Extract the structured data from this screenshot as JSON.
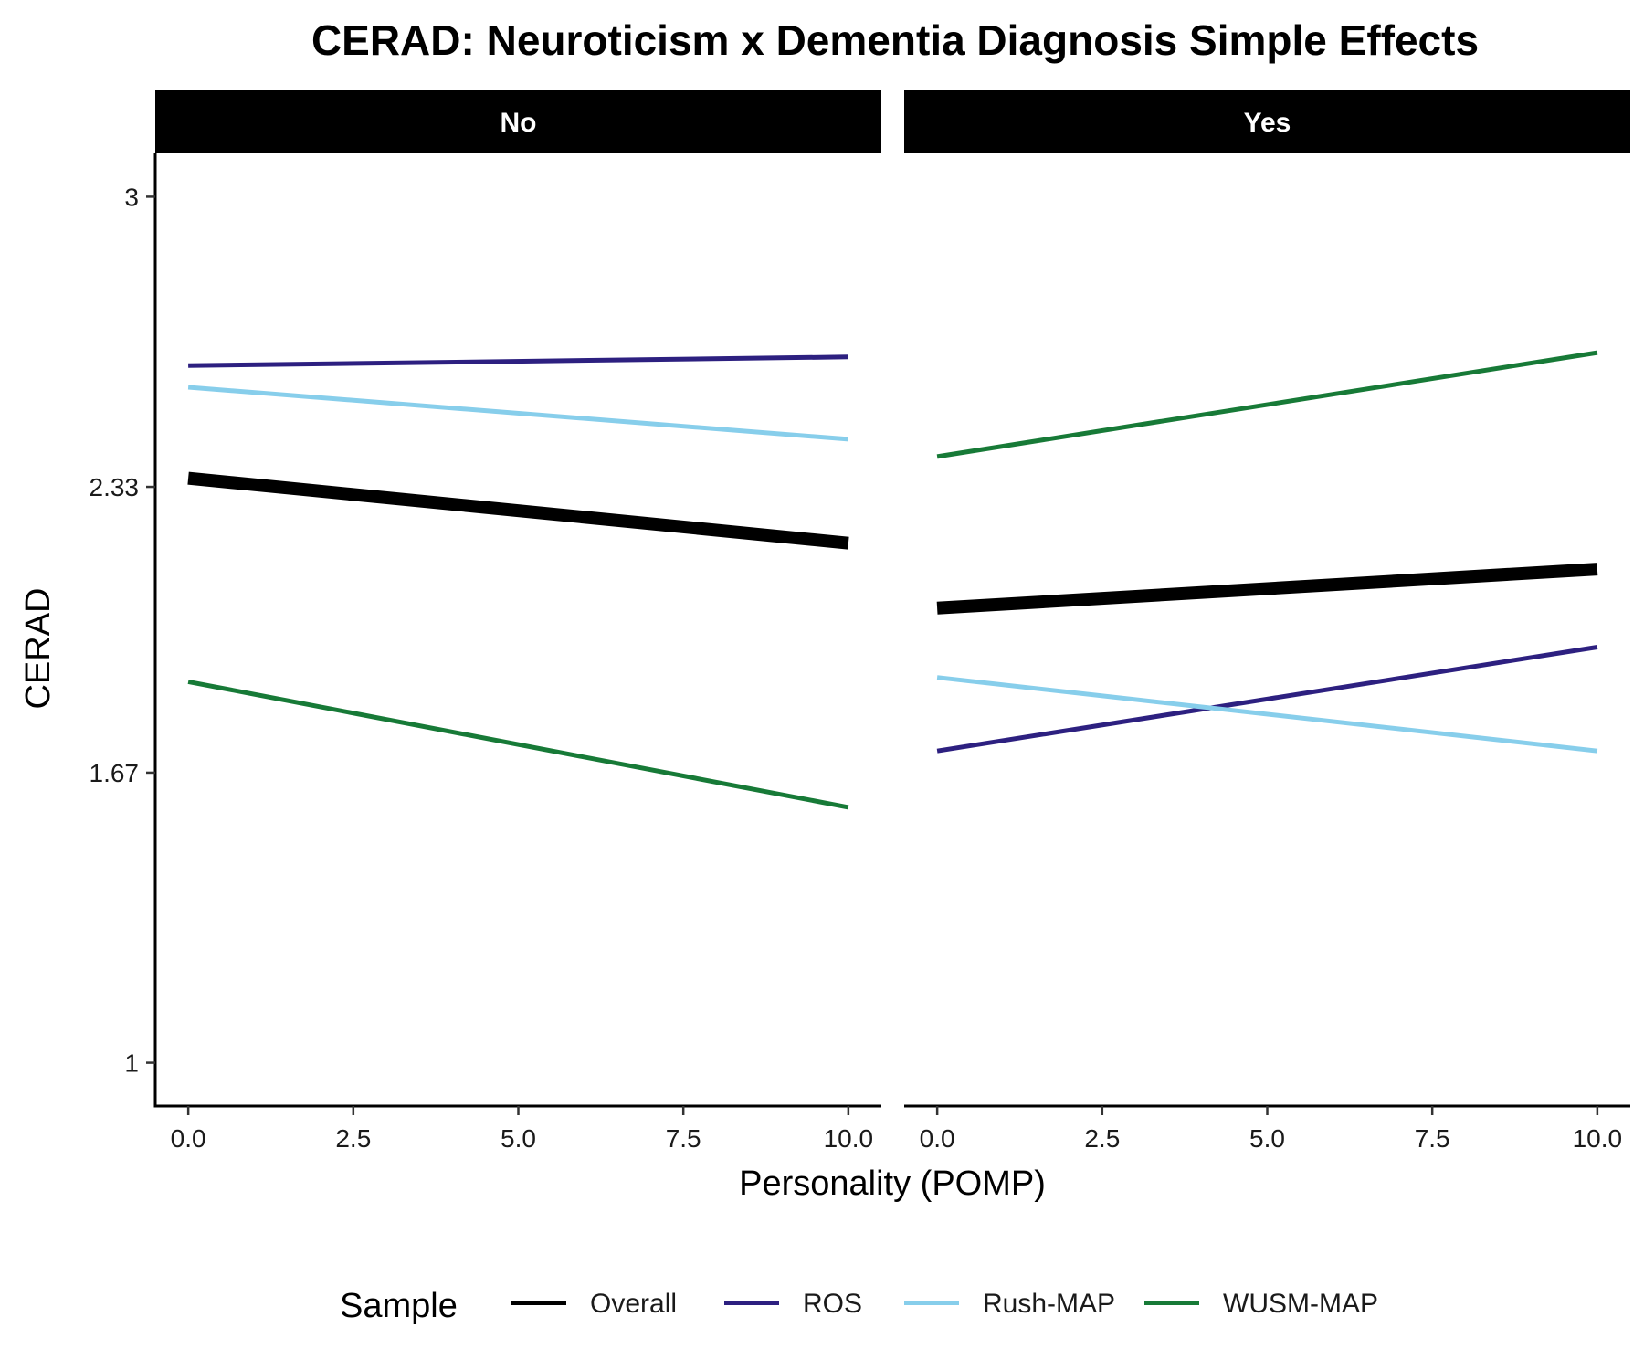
{
  "chart_data": {
    "type": "line",
    "title": "CERAD: Neuroticism x Dementia Diagnosis Simple Effects",
    "xlabel": "Personality (POMP)",
    "ylabel": "CERAD",
    "xlim": [
      -0.5,
      10.5
    ],
    "ylim": [
      0.9,
      3.1
    ],
    "x_ticks": [
      0,
      2.5,
      5,
      7.5,
      10
    ],
    "x_tick_labels": [
      "0.0",
      "2.5",
      "5.0",
      "7.5",
      "10.0"
    ],
    "y_ticks": [
      1,
      1.67,
      2.33,
      3
    ],
    "y_tick_labels": [
      "1",
      "1.67",
      "2.33",
      "3"
    ],
    "grid": false,
    "legend": {
      "title": "Sample",
      "placement": "bottom"
    },
    "facets": [
      {
        "label": "No",
        "series": [
          {
            "name": "Overall",
            "color": "#000000",
            "x": [
              0,
              10
            ],
            "y": [
              2.35,
              2.2
            ]
          },
          {
            "name": "ROS",
            "color": "#2d2080",
            "x": [
              0,
              10
            ],
            "y": [
              2.61,
              2.63
            ]
          },
          {
            "name": "Rush-MAP",
            "color": "#87ceeb",
            "x": [
              0,
              10
            ],
            "y": [
              2.56,
              2.44
            ]
          },
          {
            "name": "WUSM-MAP",
            "color": "#177a37",
            "x": [
              0,
              10
            ],
            "y": [
              1.88,
              1.59
            ]
          }
        ]
      },
      {
        "label": "Yes",
        "series": [
          {
            "name": "Overall",
            "color": "#000000",
            "x": [
              0,
              10
            ],
            "y": [
              2.05,
              2.14
            ]
          },
          {
            "name": "ROS",
            "color": "#2d2080",
            "x": [
              0,
              10
            ],
            "y": [
              1.72,
              1.96
            ]
          },
          {
            "name": "Rush-MAP",
            "color": "#87ceeb",
            "x": [
              0,
              10
            ],
            "y": [
              1.89,
              1.72
            ]
          },
          {
            "name": "WUSM-MAP",
            "color": "#177a37",
            "x": [
              0,
              10
            ],
            "y": [
              2.4,
              2.64
            ]
          }
        ]
      }
    ]
  }
}
